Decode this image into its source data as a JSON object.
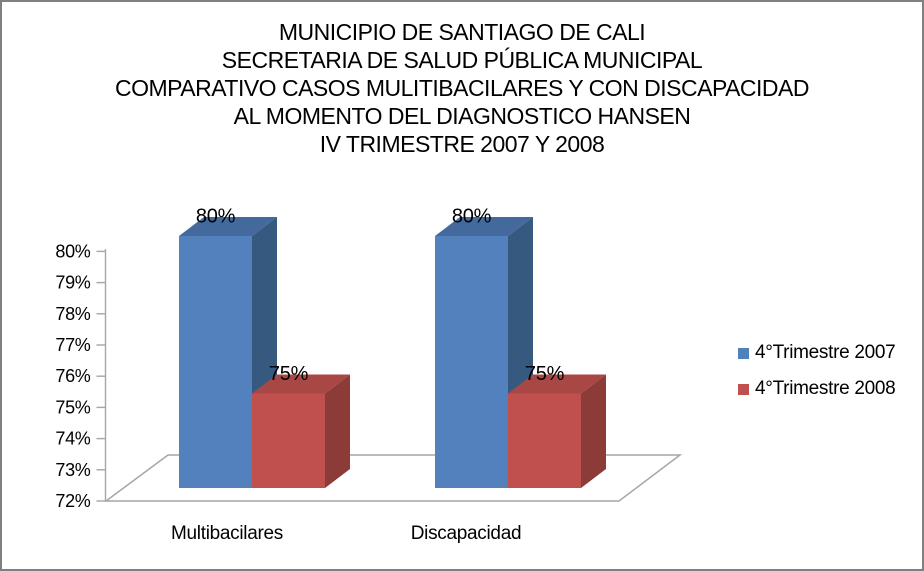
{
  "window": {
    "background": "#FFFFFF",
    "border_color": "#808080"
  },
  "chart_data": {
    "type": "bar",
    "style": "3d-clustered-column",
    "title_lines": [
      "MUNICIPIO DE SANTIAGO DE CALI",
      "SECRETARIA DE SALUD PÚBLICA MUNICIPAL",
      "COMPARATIVO CASOS MULITIBACILARES Y CON DISCAPACIDAD",
      "AL MOMENTO DEL DIAGNOSTICO HANSEN",
      "IV TRIMESTRE 2007 Y 2008"
    ],
    "categories": [
      "Multibacilares",
      "Discapacidad"
    ],
    "series": [
      {
        "name": "4°Trimestre 2007",
        "values": [
          80,
          80
        ],
        "data_labels": [
          "80%",
          "80%"
        ],
        "color": "#4F81BD",
        "front_color": "#5381BE",
        "top_color": "#44699D",
        "side_color": "#36597F"
      },
      {
        "name": "4°Trimestre 2008",
        "values": [
          75,
          75
        ],
        "data_labels": [
          "75%",
          "75%"
        ],
        "color": "#C0504D",
        "front_color": "#C0504D",
        "top_color": "#A94744",
        "side_color": "#8C3B38"
      }
    ],
    "y_axis": {
      "min": 72,
      "max": 80,
      "step": 1,
      "unit": "%",
      "tick_labels": [
        "72%",
        "73%",
        "74%",
        "75%",
        "76%",
        "77%",
        "78%",
        "79%",
        "80%"
      ]
    },
    "axis_color": "#A6A6A6",
    "grid": "off",
    "legend_position": "right",
    "data_label_color": "#000000",
    "text_color": "#000000"
  }
}
